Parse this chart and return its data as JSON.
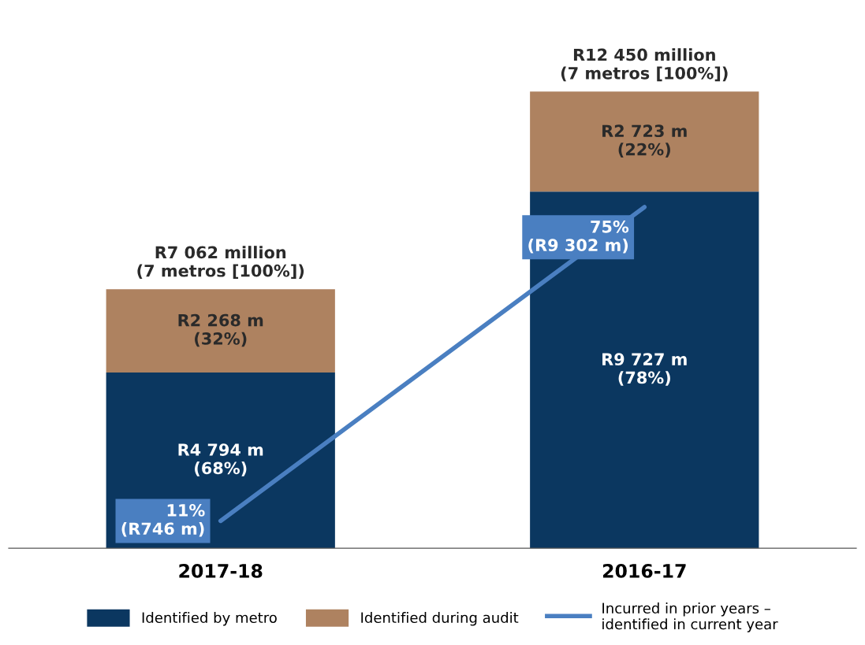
{
  "chart_data": {
    "type": "bar",
    "stacked": true,
    "categories": [
      "2017-18",
      "2016-17"
    ],
    "series": [
      {
        "name": "Identified by metro",
        "color": "#0b3760",
        "values": [
          4794,
          9727
        ],
        "value_labels": [
          "R4 794 m\n(68%)",
          "R9 727 m\n(78%)"
        ]
      },
      {
        "name": "Identified during audit",
        "color": "#ae8260",
        "values": [
          2268,
          2723
        ],
        "value_labels": [
          "R2 268 m\n(32%)",
          "R2 723 m\n(22%)"
        ]
      },
      {
        "name": "Incurred in prior years –\nidentified in current year",
        "type": "line",
        "color": "#4a7fc1",
        "values": [
          746,
          9302
        ],
        "value_labels": [
          "11%\n(R746 m)",
          "75%\n(R9 302 m)"
        ]
      }
    ],
    "totals": [
      "R7 062 million\n(7 metros [100%])",
      "R12 450 million\n(7 metros [100%])"
    ],
    "legend": "bottom",
    "tick_labels": "x",
    "grid": false
  }
}
